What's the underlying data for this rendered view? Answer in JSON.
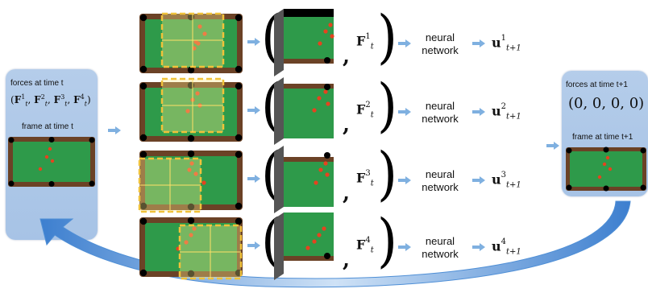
{
  "left_panel": {
    "forces_title": "forces  at time t",
    "forces_value": "(F¹ₜ, F²ₜ, F³ₜ, F⁴ₜ)",
    "frame_title": "frame at time t"
  },
  "right_panel": {
    "forces_title": "forces  at time t+1",
    "forces_value": "(0, 0, 0, 0)",
    "frame_title": "frame at time t+1"
  },
  "rows": [
    {
      "force_symbol": "F",
      "force_index": "1",
      "time_sub": "t",
      "net_line1": "neural",
      "net_line2": "network",
      "out_symbol": "u",
      "out_index": "1",
      "out_sub": "t+1"
    },
    {
      "force_symbol": "F",
      "force_index": "2",
      "time_sub": "t",
      "net_line1": "neural",
      "net_line2": "network",
      "out_symbol": "u",
      "out_index": "2",
      "out_sub": "t+1"
    },
    {
      "force_symbol": "F",
      "force_index": "3",
      "time_sub": "t",
      "net_line1": "neural",
      "net_line2": "network",
      "out_symbol": "u",
      "out_index": "3",
      "out_sub": "t+1"
    },
    {
      "force_symbol": "F",
      "force_index": "4",
      "time_sub": "t",
      "net_line1": "neural",
      "net_line2": "network",
      "out_symbol": "u",
      "out_index": "4",
      "out_sub": "t+1"
    }
  ],
  "colors": {
    "felt": "#2e9a4a",
    "cushion": "#6b4226",
    "ball": "#e5431f",
    "pocket": "#000000",
    "window": "#f0c23a",
    "panel": "#a9c5e8",
    "arrow": "#7fb0e0",
    "loop_arrow": "#4f8fd6"
  }
}
